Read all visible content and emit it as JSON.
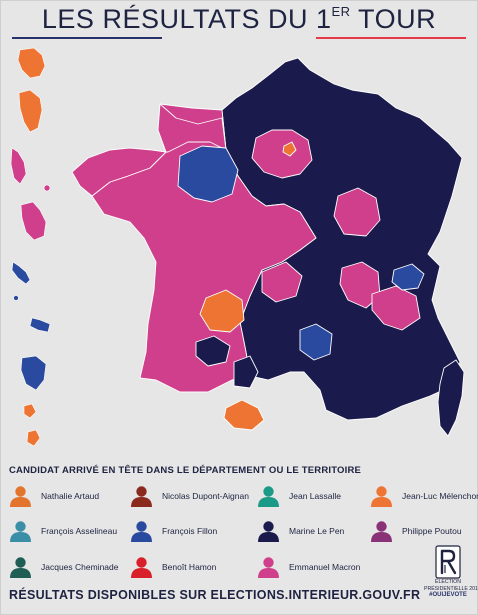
{
  "title": {
    "main": "LES RÉSULTATS DU 1",
    "sup": "ER",
    "tail": " TOUR"
  },
  "colors": {
    "macron": "#cf3f8b",
    "le_pen": "#1b1a4d",
    "fillon": "#2a4aa0",
    "melenchon": "#ee7433",
    "outline": "#ffffff"
  },
  "legend": {
    "title": "CANDIDAT ARRIVÉ EN TÊTE DANS LE DÉPARTEMENT OU LE TERRITOIRE",
    "items": [
      {
        "name": "Nathalie Artaud",
        "color": "#e2742c",
        "icon": "person-icon"
      },
      {
        "name": "Nicolas Dupont-Aignan",
        "color": "#8a2a1c",
        "icon": "person-icon"
      },
      {
        "name": "Jean Lassalle",
        "color": "#1b9a87",
        "icon": "person-icon"
      },
      {
        "name": "Jean-Luc Mélenchon",
        "color": "#ee7433",
        "icon": "person-icon"
      },
      {
        "name": "François Asselineau",
        "color": "#3a8ea6",
        "icon": "person-icon"
      },
      {
        "name": "François Fillon",
        "color": "#2a4aa0",
        "icon": "person-icon"
      },
      {
        "name": "Marine Le Pen",
        "color": "#1b1a4d",
        "icon": "person-icon"
      },
      {
        "name": "Philippe Poutou",
        "color": "#8a3278",
        "icon": "person-icon"
      },
      {
        "name": "Jacques Cheminade",
        "color": "#1f5e54",
        "icon": "person-icon"
      },
      {
        "name": "Benoît Hamon",
        "color": "#d81f2a",
        "icon": "person-icon"
      },
      {
        "name": "Emmanuel Macron",
        "color": "#cf3f8b",
        "icon": "person-icon"
      }
    ]
  },
  "footer": {
    "text": "RÉSULTATS DISPONIBLES SUR ELECTIONS.INTERIEUR.GOUV.FR"
  },
  "badge": {
    "line1": "ÉLECTION",
    "line2": "PRÉSIDENTIELLE 2017",
    "hashtag": "#OUIJEVOTE"
  }
}
